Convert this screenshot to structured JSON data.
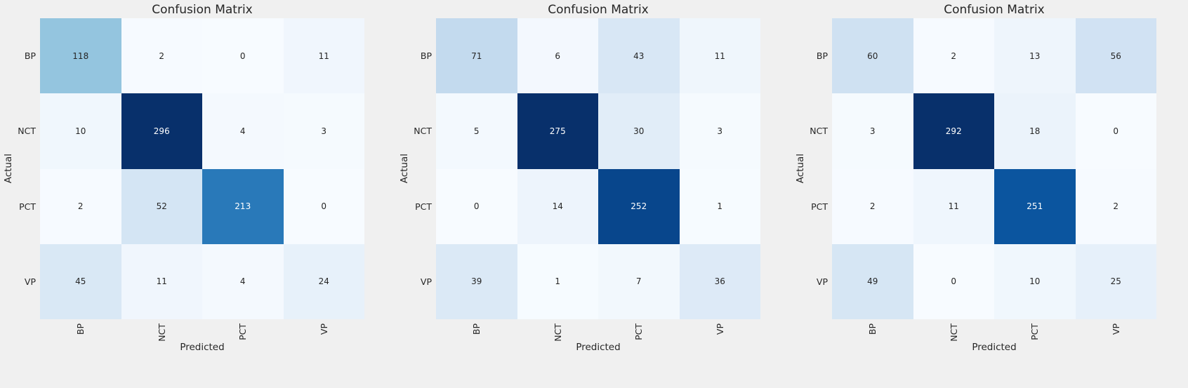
{
  "figure": {
    "background": "#f0f0f0",
    "text_color": "#262626",
    "cell_text_light": "#ffffff"
  },
  "chart_data": [
    {
      "type": "heatmap",
      "title": "Confusion Matrix",
      "xlabel": "Predicted",
      "ylabel": "Actual",
      "x_categories": [
        "BP",
        "NCT",
        "PCT",
        "VP"
      ],
      "y_categories": [
        "BP",
        "NCT",
        "PCT",
        "VP"
      ],
      "values": [
        [
          118,
          2,
          0,
          11
        ],
        [
          10,
          296,
          4,
          3
        ],
        [
          2,
          52,
          213,
          0
        ],
        [
          45,
          11,
          4,
          24
        ]
      ],
      "colormap": "Blues",
      "vmin": 0,
      "vmax": 296,
      "legend": "none"
    },
    {
      "type": "heatmap",
      "title": "Confusion Matrix",
      "xlabel": "Predicted",
      "ylabel": "Actual",
      "x_categories": [
        "BP",
        "NCT",
        "PCT",
        "VP"
      ],
      "y_categories": [
        "BP",
        "NCT",
        "PCT",
        "VP"
      ],
      "values": [
        [
          71,
          6,
          43,
          11
        ],
        [
          5,
          275,
          30,
          3
        ],
        [
          0,
          14,
          252,
          1
        ],
        [
          39,
          1,
          7,
          36
        ]
      ],
      "colormap": "Blues",
      "vmin": 0,
      "vmax": 275,
      "legend": "none"
    },
    {
      "type": "heatmap",
      "title": "Confusion Matrix",
      "xlabel": "Predicted",
      "ylabel": "Actual",
      "x_categories": [
        "BP",
        "NCT",
        "PCT",
        "VP"
      ],
      "y_categories": [
        "BP",
        "NCT",
        "PCT",
        "VP"
      ],
      "values": [
        [
          60,
          2,
          13,
          56
        ],
        [
          3,
          292,
          18,
          0
        ],
        [
          2,
          11,
          251,
          2
        ],
        [
          49,
          0,
          10,
          25
        ]
      ],
      "colormap": "Blues",
      "vmin": 0,
      "vmax": 292,
      "legend": "none"
    }
  ]
}
